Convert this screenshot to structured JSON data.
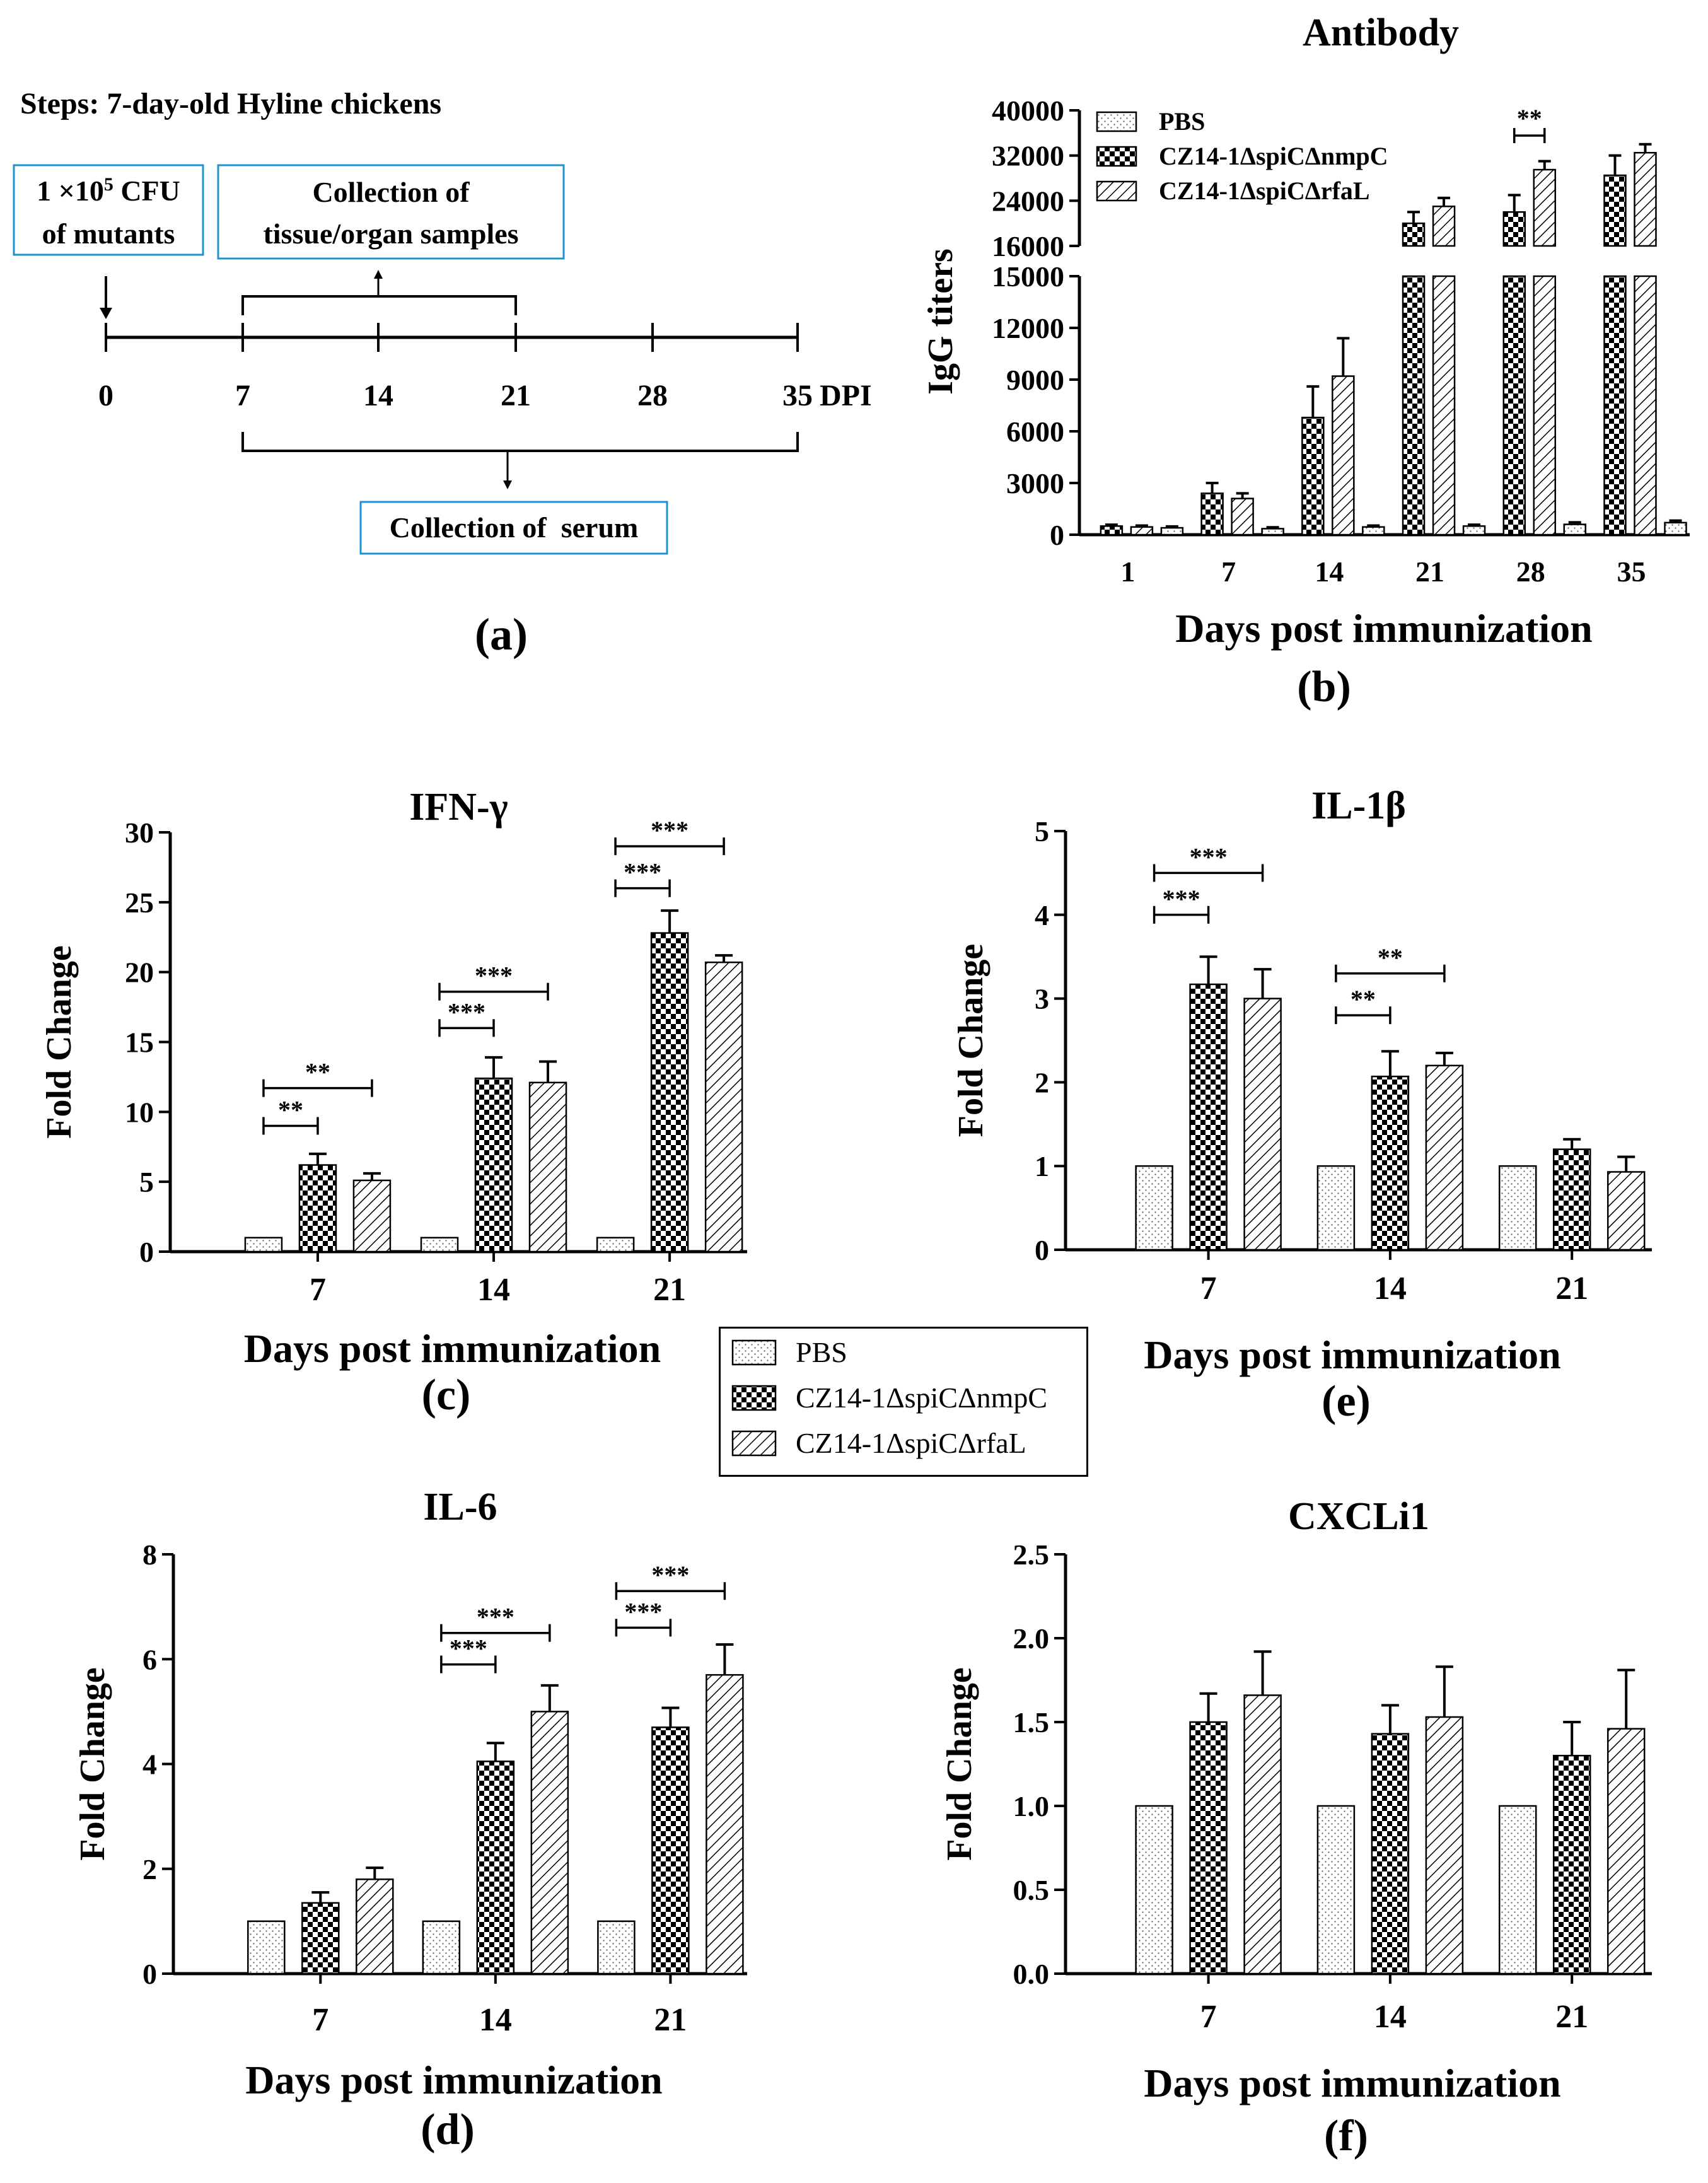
{
  "series_names": [
    "PBS",
    "CZ14-1ΔspiCΔnmpC",
    "CZ14-1ΔspiCΔrfaL"
  ],
  "panel_a": {
    "steps": "Steps: 7-day-old Hyline chickens",
    "dose": "1 ×10⁵ CFU of mutants",
    "dose_line1": "1 ×10",
    "dose_sup": "5",
    "dose_line1b": " CFU",
    "dose_line2": "of mutants",
    "tissue_line1": "Collection of",
    "tissue_line2": "tissue/organ samples",
    "serum": "Collection of  serum",
    "ticks": [
      "0",
      "7",
      "14",
      "21",
      "28",
      "35"
    ],
    "unit": "DPI",
    "caption": "(a)"
  },
  "chart_data": [
    {
      "id": "b",
      "type": "bar",
      "title": "Antibody",
      "xlabel": "Days post immunization",
      "ylabel": "IgG titers",
      "caption": "(b)",
      "categories": [
        "1",
        "7",
        "14",
        "21",
        "28",
        "35"
      ],
      "y_axis_break": true,
      "ylim_lower": [
        0,
        15000
      ],
      "ylim_upper": [
        16000,
        40000
      ],
      "yticks_lower": [
        "0",
        "3000",
        "6000",
        "9000",
        "12000",
        "15000"
      ],
      "yticks_upper": [
        "16000",
        "24000",
        "32000",
        "40000"
      ],
      "series": [
        {
          "name": "PBS",
          "values": [
            400,
            350,
            450,
            500,
            600,
            700
          ],
          "errors": [
            80,
            80,
            80,
            80,
            120,
            120
          ]
        },
        {
          "name": "CZ14-1ΔspiCΔnmpC",
          "values": [
            500,
            2400,
            6800,
            20000,
            22000,
            28500
          ],
          "errors": [
            80,
            600,
            1800,
            2000,
            3000,
            3500
          ]
        },
        {
          "name": "CZ14-1ΔspiCΔrfaL",
          "values": [
            450,
            2100,
            9200,
            23000,
            29500,
            32500
          ],
          "errors": [
            80,
            300,
            2200,
            1500,
            1500,
            1500
          ]
        }
      ],
      "significance": [
        {
          "group": 4,
          "from": 1,
          "to": 2,
          "label": "**"
        }
      ]
    },
    {
      "id": "c",
      "type": "bar",
      "title": "IFN-γ",
      "xlabel": "Days post immunization",
      "ylabel": "Fold Change",
      "caption": "(c)",
      "categories": [
        "7",
        "14",
        "21"
      ],
      "ylim": [
        0,
        30
      ],
      "yticks": [
        "0",
        "5",
        "10",
        "15",
        "20",
        "25",
        "30"
      ],
      "series": [
        {
          "name": "PBS",
          "values": [
            1,
            1,
            1
          ],
          "errors": [
            0,
            0,
            0
          ]
        },
        {
          "name": "CZ14-1ΔspiCΔnmpC",
          "values": [
            6.2,
            12.4,
            22.8
          ],
          "errors": [
            0.8,
            1.5,
            1.6
          ]
        },
        {
          "name": "CZ14-1ΔspiCΔrfaL",
          "values": [
            5.1,
            12.1,
            20.7
          ],
          "errors": [
            0.5,
            1.5,
            0.5
          ]
        }
      ],
      "significance": [
        {
          "group": 0,
          "from": 0,
          "to": 1,
          "level": 9,
          "label": "**"
        },
        {
          "group": 0,
          "from": 0,
          "to": 2,
          "level": 11.7,
          "label": "**"
        },
        {
          "group": 1,
          "from": 0,
          "to": 1,
          "level": 16,
          "label": "***"
        },
        {
          "group": 1,
          "from": 0,
          "to": 2,
          "level": 18.6,
          "label": "***"
        },
        {
          "group": 2,
          "from": 0,
          "to": 1,
          "level": 26,
          "label": "***"
        },
        {
          "group": 2,
          "from": 0,
          "to": 2,
          "level": 29,
          "label": "***"
        }
      ]
    },
    {
      "id": "e",
      "type": "bar",
      "title": "IL-1β",
      "xlabel": "Days post immunization",
      "ylabel": "Fold Change",
      "caption": "(e)",
      "categories": [
        "7",
        "14",
        "21"
      ],
      "ylim": [
        0,
        5
      ],
      "yticks": [
        "0",
        "1",
        "2",
        "3",
        "4",
        "5"
      ],
      "series": [
        {
          "name": "PBS",
          "values": [
            1,
            1,
            1
          ],
          "errors": [
            0,
            0,
            0
          ]
        },
        {
          "name": "CZ14-1ΔspiCΔnmpC",
          "values": [
            3.17,
            2.07,
            1.2
          ],
          "errors": [
            0.33,
            0.3,
            0.12
          ]
        },
        {
          "name": "CZ14-1ΔspiCΔrfaL",
          "values": [
            3.0,
            2.2,
            0.93
          ],
          "errors": [
            0.35,
            0.15,
            0.18
          ]
        }
      ],
      "significance": [
        {
          "group": 0,
          "from": 0,
          "to": 1,
          "level": 4.0,
          "label": "***"
        },
        {
          "group": 0,
          "from": 0,
          "to": 2,
          "level": 4.5,
          "label": "***"
        },
        {
          "group": 1,
          "from": 0,
          "to": 1,
          "level": 2.8,
          "label": "**"
        },
        {
          "group": 1,
          "from": 0,
          "to": 2,
          "level": 3.3,
          "label": "**"
        }
      ]
    },
    {
      "id": "d",
      "type": "bar",
      "title": "IL-6",
      "xlabel": "Days post immunization",
      "ylabel": "Fold Change",
      "caption": "(d)",
      "categories": [
        "7",
        "14",
        "21"
      ],
      "ylim": [
        0,
        8
      ],
      "yticks": [
        "0",
        "2",
        "4",
        "6",
        "8"
      ],
      "series": [
        {
          "name": "PBS",
          "values": [
            1,
            1,
            1
          ],
          "errors": [
            0,
            0,
            0
          ]
        },
        {
          "name": "CZ14-1ΔspiCΔnmpC",
          "values": [
            1.35,
            4.05,
            4.7
          ],
          "errors": [
            0.2,
            0.35,
            0.37
          ]
        },
        {
          "name": "CZ14-1ΔspiCΔrfaL",
          "values": [
            1.8,
            5.0,
            5.7
          ],
          "errors": [
            0.22,
            0.5,
            0.58
          ]
        }
      ],
      "significance": [
        {
          "group": 1,
          "from": 0,
          "to": 1,
          "level": 5.9,
          "label": "***"
        },
        {
          "group": 1,
          "from": 0,
          "to": 2,
          "level": 6.5,
          "label": "***"
        },
        {
          "group": 2,
          "from": 0,
          "to": 1,
          "level": 6.6,
          "label": "***"
        },
        {
          "group": 2,
          "from": 0,
          "to": 2,
          "level": 7.3,
          "label": "***"
        }
      ]
    },
    {
      "id": "f",
      "type": "bar",
      "title": "CXCLi1",
      "xlabel": "Days post immunization",
      "ylabel": "Fold Change",
      "caption": "(f)",
      "categories": [
        "7",
        "14",
        "21"
      ],
      "ylim": [
        0,
        2.5
      ],
      "yticks": [
        "0.0",
        "0.5",
        "1.0",
        "1.5",
        "2.0",
        "2.5"
      ],
      "series": [
        {
          "name": "PBS",
          "values": [
            1,
            1,
            1
          ],
          "errors": [
            0,
            0,
            0
          ]
        },
        {
          "name": "CZ14-1ΔspiCΔnmpC",
          "values": [
            1.5,
            1.43,
            1.3
          ],
          "errors": [
            0.17,
            0.17,
            0.2
          ]
        },
        {
          "name": "CZ14-1ΔspiCΔrfaL",
          "values": [
            1.66,
            1.53,
            1.46
          ],
          "errors": [
            0.26,
            0.3,
            0.35
          ]
        }
      ],
      "significance": []
    }
  ],
  "colors": {
    "pbs_bg": "#ffffff",
    "dot": "#555555",
    "ink": "#000000",
    "box_border": "#1f93c8"
  }
}
